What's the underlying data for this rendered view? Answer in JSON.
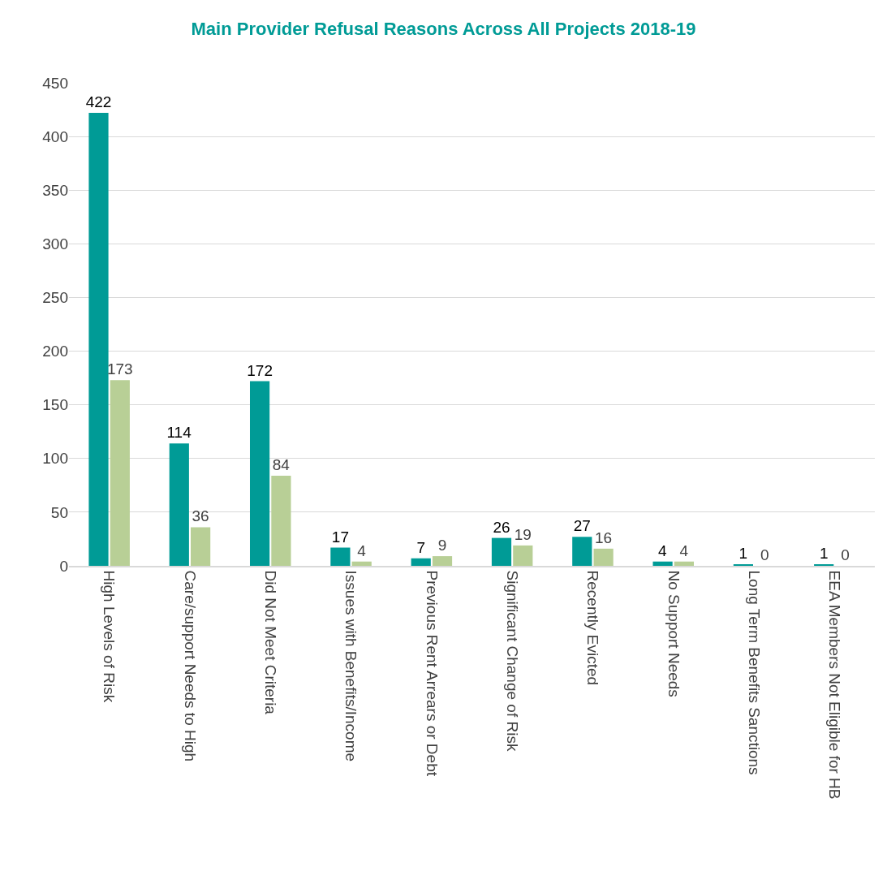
{
  "chart_data": {
    "type": "bar",
    "title": "Main Provider Refusal Reasons Across All Projects 2018-19",
    "categories": [
      "High Levels of Risk",
      "Care/support Needs to High",
      "Did Not Meet Criteria",
      "Issues with Benefits/Income",
      "Previous Rent Arrears or Debt",
      "Significant Change of Risk",
      "Recently Evicted",
      "No Support Needs",
      "Long Term Benefits Sanctions",
      "EEA Members Not Eligible for HB"
    ],
    "series": [
      {
        "color": "#009b96",
        "values": [
          422,
          114,
          172,
          17,
          7,
          26,
          27,
          4,
          1,
          1
        ]
      },
      {
        "color": "#b8cf96",
        "values": [
          173,
          36,
          84,
          4,
          9,
          19,
          16,
          4,
          0,
          0
        ]
      }
    ],
    "ylim": [
      0,
      450
    ],
    "yticks": [
      0,
      50,
      100,
      150,
      200,
      250,
      300,
      350,
      400,
      450
    ],
    "grid": "y",
    "data_labels": true
  }
}
